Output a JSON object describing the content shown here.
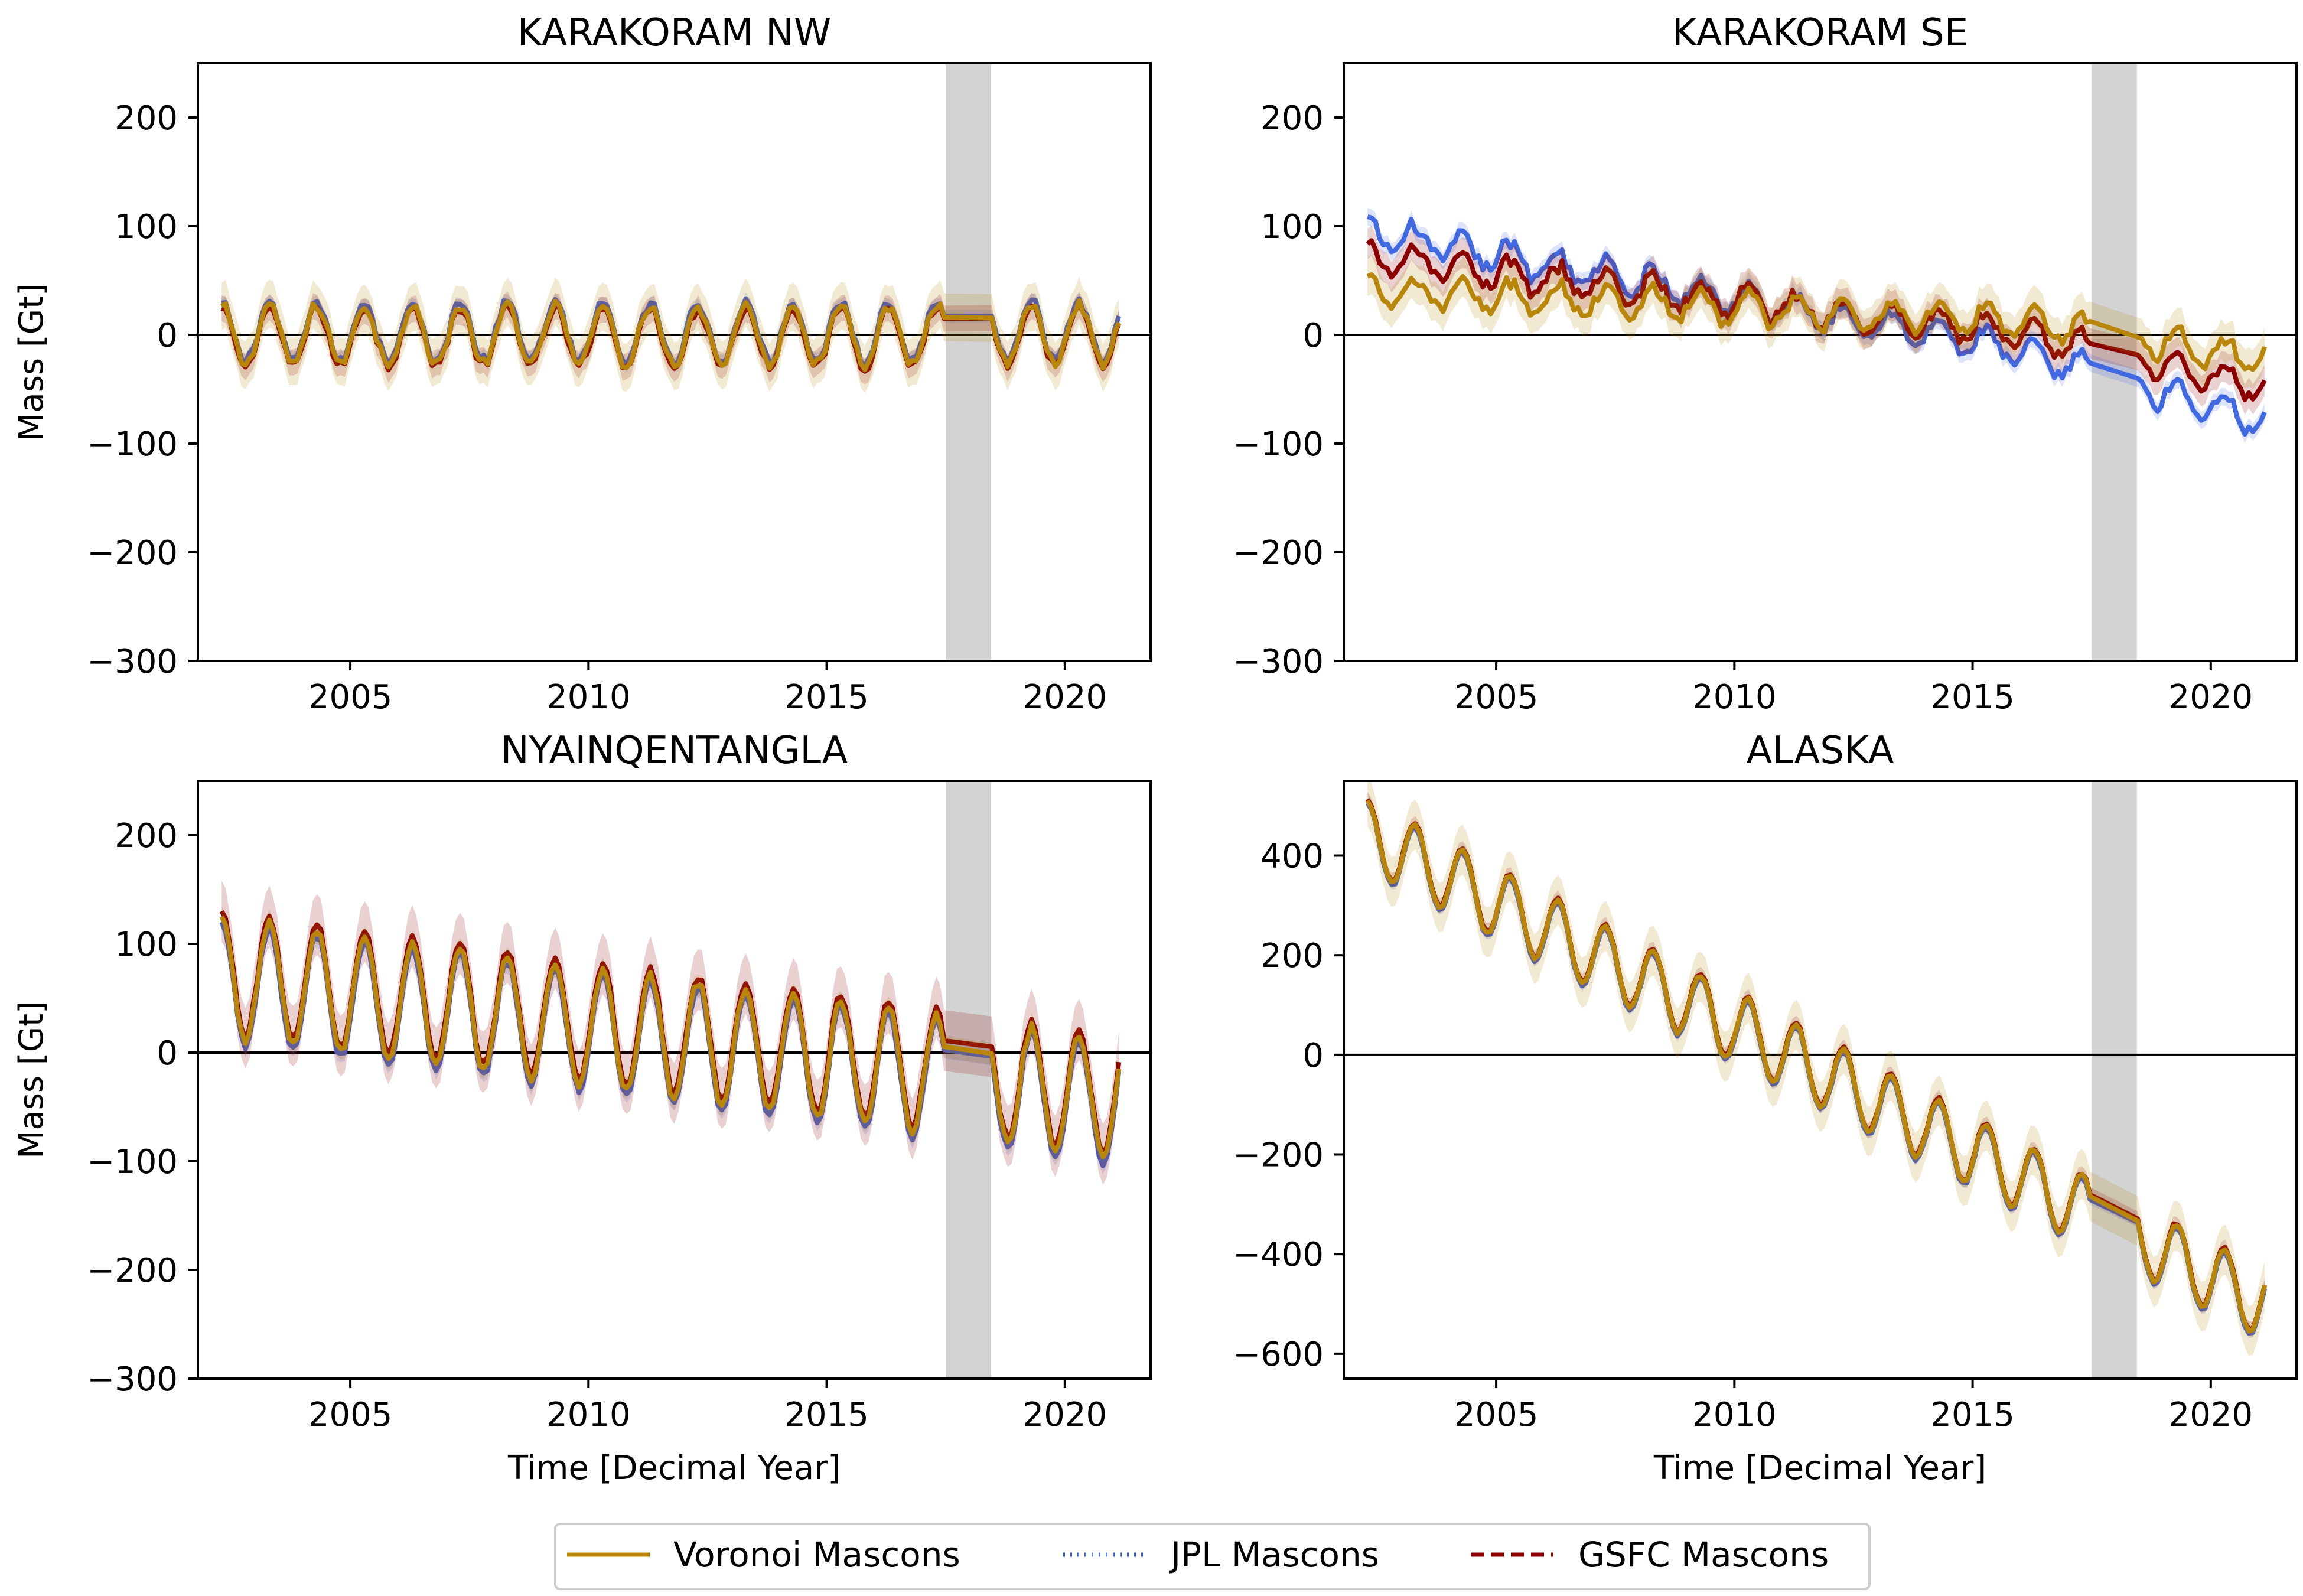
{
  "chart_data": [
    {
      "type": "line",
      "title": "KARAKORAM NW",
      "xlabel": "",
      "ylabel": "Mass [Gt]",
      "xlim": [
        2001.8,
        2021.8
      ],
      "ylim": [
        -300,
        250
      ],
      "xticks": [
        2005,
        2010,
        2015,
        2020
      ],
      "yticks": [
        -300,
        -200,
        -100,
        0,
        100,
        200
      ],
      "ytick_labels": [
        "−300",
        "−200",
        "−100",
        "0",
        "100",
        "200"
      ],
      "gap_band": [
        2017.5,
        2018.45
      ],
      "model": {
        "trend": 0,
        "amp": 27,
        "noise": 8,
        "start": 0
      },
      "series": [
        {
          "name": "Voronoi Mascons",
          "offset": 0,
          "color": "#b8860b",
          "style": "solid",
          "band": 22
        },
        {
          "name": "JPL Mascons",
          "offset": 3,
          "color": "#4169e1",
          "style": "dotted",
          "band": 6
        },
        {
          "name": "GSFC Mascons",
          "offset": -2,
          "color": "#8b0000",
          "style": "dashed",
          "band": 12
        }
      ]
    },
    {
      "type": "line",
      "title": "KARAKORAM SE",
      "xlabel": "",
      "ylabel": "",
      "xlim": [
        2001.8,
        2021.8
      ],
      "ylim": [
        -300,
        250
      ],
      "xticks": [
        2005,
        2010,
        2015,
        2020
      ],
      "yticks": [
        -300,
        -200,
        -100,
        0,
        100,
        200
      ],
      "ytick_labels": [
        "−300",
        "−200",
        "−100",
        "0",
        "100",
        "200"
      ],
      "gap_band": [
        2017.5,
        2018.45
      ],
      "model": {
        "trend": -5,
        "amp": 14,
        "noise": 10,
        "start": 60
      },
      "series": [
        {
          "name": "Voronoi Mascons",
          "offset": -20,
          "color": "#b8860b",
          "style": "solid",
          "band": 18,
          "trend_adj": 3
        },
        {
          "name": "JPL Mascons",
          "offset": 35,
          "color": "#4169e1",
          "style": "dotted",
          "band": 8,
          "trend_adj": -3
        },
        {
          "name": "GSFC Mascons",
          "offset": 10,
          "color": "#8b0000",
          "style": "dashed",
          "band": 14,
          "trend_adj": 0
        }
      ]
    },
    {
      "type": "line",
      "title": "NYAINQENTANGLA",
      "xlabel": "Time [Decimal Year]",
      "ylabel": "Mass [Gt]",
      "xlim": [
        2001.8,
        2021.8
      ],
      "ylim": [
        -300,
        250
      ],
      "xticks": [
        2005,
        2010,
        2015,
        2020
      ],
      "yticks": [
        -300,
        -200,
        -100,
        0,
        100,
        200
      ],
      "ytick_labels": [
        "−300",
        "−200",
        "−100",
        "0",
        "100",
        "200"
      ],
      "gap_band": [
        2017.5,
        2018.45
      ],
      "model": {
        "trend": -6,
        "amp": 55,
        "noise": 6,
        "start": 70
      },
      "series": [
        {
          "name": "Voronoi Mascons",
          "offset": 0,
          "color": "#b8860b",
          "style": "solid",
          "band": 10
        },
        {
          "name": "JPL Mascons",
          "offset": -5,
          "color": "#4169e1",
          "style": "dotted",
          "band": 8
        },
        {
          "name": "GSFC Mascons",
          "offset": 5,
          "color": "#8b0000",
          "style": "dashed",
          "band": 28
        }
      ]
    },
    {
      "type": "line",
      "title": "ALASKA",
      "xlabel": "Time [Decimal Year]",
      "ylabel": "",
      "xlim": [
        2001.8,
        2021.8
      ],
      "ylim": [
        -650,
        550
      ],
      "xticks": [
        2005,
        2010,
        2015,
        2020
      ],
      "yticks": [
        -600,
        -400,
        -200,
        0,
        200,
        400
      ],
      "ytick_labels": [
        "−600",
        "−400",
        "−200",
        "0",
        "200",
        "400"
      ],
      "gap_band": [
        2017.5,
        2018.45
      ],
      "model": {
        "trend": -50,
        "amp": 70,
        "noise": 6,
        "start": 440
      },
      "series": [
        {
          "name": "Voronoi Mascons",
          "offset": 0,
          "color": "#b8860b",
          "style": "solid",
          "band": 50
        },
        {
          "name": "JPL Mascons",
          "offset": -5,
          "color": "#4169e1",
          "style": "dotted",
          "band": 10
        },
        {
          "name": "GSFC Mascons",
          "offset": 3,
          "color": "#8b0000",
          "style": "dashed",
          "band": 15
        }
      ]
    }
  ],
  "legend": {
    "items": [
      {
        "label": "Voronoi Mascons",
        "color": "#b8860b",
        "style": "solid"
      },
      {
        "label": "JPL Mascons",
        "color": "#4169e1",
        "style": "dotted"
      },
      {
        "label": "GSFC Mascons",
        "color": "#8b0000",
        "style": "dashed"
      }
    ]
  }
}
